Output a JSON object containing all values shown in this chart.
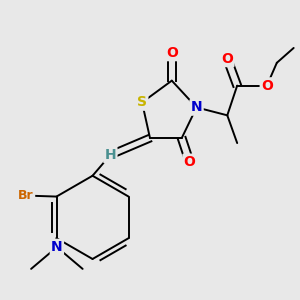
{
  "background_color": "#e8e8e8",
  "figsize": [
    3.0,
    3.0
  ],
  "dpi": 100,
  "colors": {
    "black": "#000000",
    "S": "#c8b400",
    "N": "#0000cc",
    "O": "#ff0000",
    "H": "#4a9090",
    "Br": "#cc6600"
  }
}
